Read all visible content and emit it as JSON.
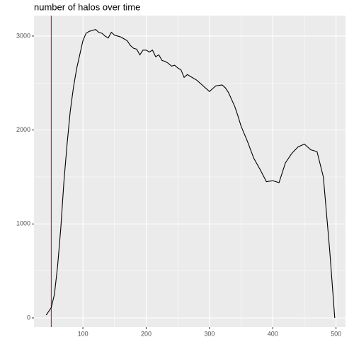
{
  "chart_data": {
    "type": "line",
    "title": "number of halos over time",
    "series": [
      {
        "color": "#000000",
        "x": [
          42,
          50,
          55,
          60,
          65,
          70,
          75,
          80,
          85,
          90,
          95,
          100,
          105,
          110,
          115,
          120,
          125,
          130,
          135,
          140,
          145,
          150,
          155,
          160,
          165,
          170,
          175,
          180,
          185,
          190,
          195,
          200,
          205,
          210,
          215,
          220,
          225,
          230,
          235,
          240,
          245,
          250,
          255,
          260,
          265,
          270,
          280,
          290,
          300,
          305,
          310,
          320,
          325,
          330,
          340,
          345,
          350,
          360,
          370,
          380,
          390,
          400,
          410,
          420,
          430,
          440,
          450,
          460,
          470,
          480,
          490,
          498
        ],
        "values": [
          30,
          110,
          250,
          550,
          950,
          1450,
          1850,
          2200,
          2450,
          2650,
          2800,
          2950,
          3030,
          3050,
          3060,
          3070,
          3040,
          3030,
          3000,
          2980,
          3040,
          3010,
          3000,
          2990,
          2970,
          2950,
          2900,
          2870,
          2860,
          2800,
          2850,
          2850,
          2830,
          2850,
          2780,
          2800,
          2740,
          2730,
          2710,
          2680,
          2690,
          2660,
          2640,
          2560,
          2590,
          2570,
          2530,
          2470,
          2410,
          2440,
          2470,
          2480,
          2450,
          2400,
          2250,
          2150,
          2040,
          1880,
          1700,
          1580,
          1450,
          1460,
          1440,
          1650,
          1750,
          1820,
          1850,
          1790,
          1770,
          1500,
          720,
          0
        ]
      }
    ],
    "vline": {
      "value": 50,
      "color": "#ff0000"
    },
    "xlim": [
      22.7,
      515
    ],
    "xticks": [
      100,
      200,
      300,
      400,
      500
    ],
    "xminor": [
      50,
      150,
      250,
      350,
      450
    ],
    "ylim": [
      -98,
      3218
    ],
    "yticks": [
      0,
      1000,
      2000,
      3000
    ],
    "yminor": [
      500,
      1500,
      2500
    ],
    "grid": true,
    "background": "#ebebeb"
  }
}
